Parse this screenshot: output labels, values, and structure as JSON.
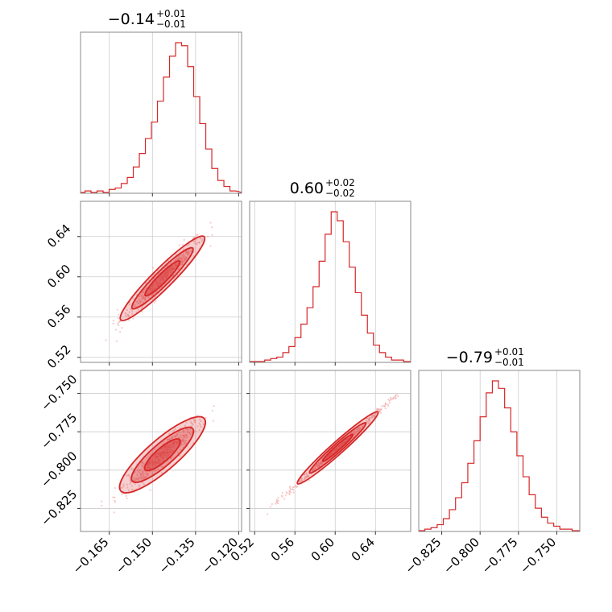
{
  "chart_data": {
    "type": "corner",
    "color": "#d62728",
    "grid": true,
    "parameters": [
      {
        "title_median": "−0.14",
        "title_plus": "+0.01",
        "title_minus": "−0.01",
        "range": [
          -0.175,
          -0.119
        ],
        "ticks": [
          -0.165,
          -0.15,
          -0.135,
          -0.12
        ],
        "tick_labels": [
          "−0.165",
          "−0.150",
          "−0.135",
          "−0.120"
        ],
        "hist_x": [
          -0.1745,
          -0.1724,
          -0.1703,
          -0.1682,
          -0.1661,
          -0.164,
          -0.1619,
          -0.1598,
          -0.1577,
          -0.1556,
          -0.1535,
          -0.1514,
          -0.1493,
          -0.1472,
          -0.1451,
          -0.143,
          -0.1409,
          -0.1388,
          -0.1367,
          -0.1346,
          -0.1325,
          -0.1304,
          -0.1283,
          -0.1262,
          -0.1241,
          -0.122
        ],
        "hist_y": [
          0.0,
          0.01,
          0.0,
          0.01,
          0.0,
          0.02,
          0.03,
          0.06,
          0.1,
          0.17,
          0.26,
          0.36,
          0.47,
          0.61,
          0.77,
          0.91,
          1.0,
          0.98,
          0.84,
          0.64,
          0.46,
          0.29,
          0.16,
          0.08,
          0.04,
          0.01
        ]
      },
      {
        "title_median": "0.60",
        "title_plus": "+0.02",
        "title_minus": "−0.02",
        "range": [
          0.515,
          0.675
        ],
        "ticks": [
          0.52,
          0.56,
          0.6,
          0.64
        ],
        "tick_labels": [
          "0.52",
          "0.56",
          "0.60",
          "0.64"
        ],
        "hist_x": [
          0.521,
          0.527,
          0.533,
          0.539,
          0.545,
          0.551,
          0.557,
          0.563,
          0.569,
          0.575,
          0.581,
          0.587,
          0.593,
          0.599,
          0.605,
          0.611,
          0.617,
          0.623,
          0.629,
          0.635,
          0.641,
          0.647,
          0.653,
          0.659,
          0.665,
          0.671
        ],
        "hist_y": [
          0.0,
          0.0,
          0.01,
          0.02,
          0.03,
          0.06,
          0.1,
          0.16,
          0.25,
          0.36,
          0.5,
          0.67,
          0.85,
          1.0,
          0.94,
          0.8,
          0.63,
          0.46,
          0.31,
          0.19,
          0.11,
          0.06,
          0.03,
          0.01,
          0.01,
          0.0
        ]
      },
      {
        "title_median": "−0.79",
        "title_plus": "+0.01",
        "title_minus": "−0.01",
        "range": [
          -0.84,
          -0.735
        ],
        "ticks": [
          -0.825,
          -0.8,
          -0.775,
          -0.75
        ],
        "tick_labels": [
          "−0.825",
          "−0.800",
          "−0.775",
          "−0.750"
        ],
        "hist_x": [
          -0.838,
          -0.834,
          -0.83,
          -0.826,
          -0.822,
          -0.818,
          -0.814,
          -0.81,
          -0.806,
          -0.802,
          -0.798,
          -0.794,
          -0.79,
          -0.786,
          -0.782,
          -0.778,
          -0.774,
          -0.77,
          -0.766,
          -0.762,
          -0.758,
          -0.754,
          -0.75,
          -0.746,
          -0.742,
          -0.738
        ],
        "hist_y": [
          0.0,
          0.01,
          0.02,
          0.04,
          0.08,
          0.14,
          0.22,
          0.32,
          0.45,
          0.6,
          0.76,
          0.92,
          1.0,
          0.95,
          0.82,
          0.66,
          0.5,
          0.36,
          0.24,
          0.15,
          0.09,
          0.05,
          0.03,
          0.01,
          0.01,
          0.0
        ]
      }
    ],
    "y_tick_labels": {
      "row1": {
        "ticks": [
          0.52,
          0.56,
          0.6,
          0.64
        ],
        "labels": [
          "0.52",
          "0.56",
          "0.60",
          "0.64"
        ]
      },
      "row2": {
        "ticks": [
          -0.825,
          -0.8,
          -0.775,
          -0.75
        ],
        "labels": [
          "−0.825",
          "−0.800",
          "−0.775",
          "−0.750"
        ]
      }
    },
    "pairs": [
      {
        "pair": "p1-vs-p2",
        "x_param": 0,
        "y_param": 1,
        "line": {
          "x0": -0.16,
          "y0": 0.56,
          "x1": -0.133,
          "y1": 0.637
        },
        "spread_y": 0.006,
        "point_extent": {
          "x0": -0.168,
          "x1": -0.124
        },
        "contour_levels": [
          {
            "half_len": 0.0145,
            "half_width": 0.0025
          },
          {
            "half_len": 0.0105,
            "half_width": 0.0018
          },
          {
            "half_len": 0.006,
            "half_width": 0.0011
          }
        ]
      },
      {
        "pair": "p1-vs-p3",
        "x_param": 0,
        "y_param": 2,
        "line": {
          "x0": -0.16,
          "y0": -0.812,
          "x1": -0.133,
          "y1": -0.768
        },
        "spread_y": 0.004,
        "point_extent": {
          "x0": -0.168,
          "x1": -0.124
        },
        "contour_levels": [
          {
            "half_len": 0.0145,
            "half_width": 0.0025
          },
          {
            "half_len": 0.0105,
            "half_width": 0.0018
          },
          {
            "half_len": 0.006,
            "half_width": 0.0011
          }
        ]
      },
      {
        "pair": "p2-vs-p3",
        "x_param": 1,
        "y_param": 2,
        "line": {
          "x0": 0.54,
          "y0": -0.822,
          "x1": 0.665,
          "y1": -0.749
        },
        "spread_y": 0.0012,
        "point_extent": {
          "x0": 0.53,
          "x1": 0.667
        },
        "contour_levels": [
          {
            "half_len": 0.04,
            "half_width": 0.001
          },
          {
            "half_len": 0.028,
            "half_width": 0.0007
          },
          {
            "half_len": 0.015,
            "half_width": 0.0004
          }
        ]
      }
    ]
  }
}
